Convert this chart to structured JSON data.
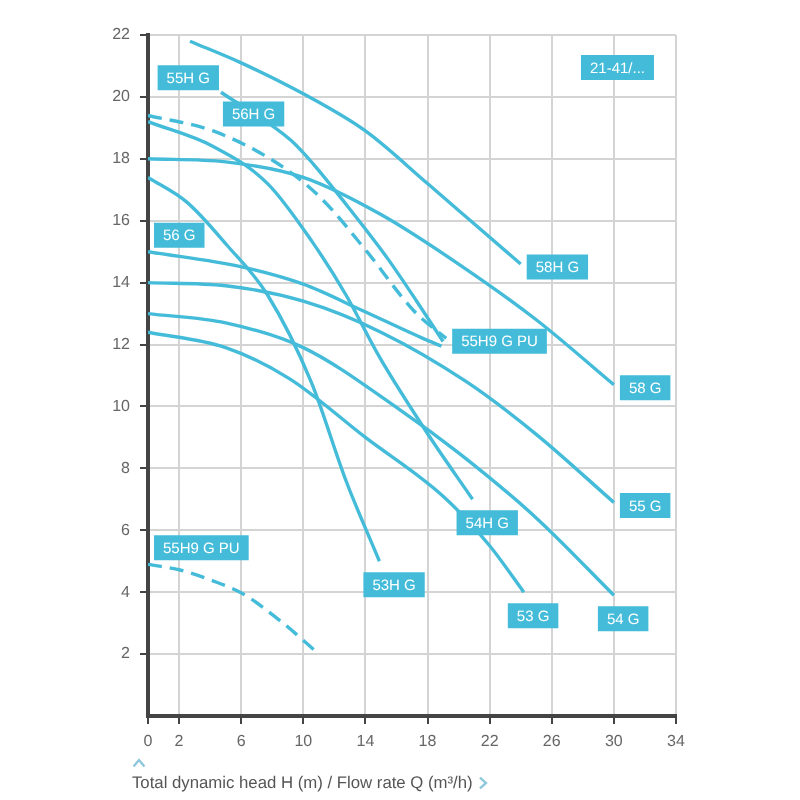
{
  "chart_data": {
    "type": "line",
    "title": "21-41/...",
    "xlabel": "Total dynamic head H (m) / Flow rate Q (m³/h)",
    "xlim": [
      0,
      34
    ],
    "xticks": [
      0,
      2,
      6,
      10,
      14,
      18,
      22,
      26,
      30,
      34
    ],
    "ylim": [
      0,
      22
    ],
    "yticks": [
      2,
      4,
      6,
      8,
      10,
      12,
      14,
      16,
      18,
      20,
      22
    ],
    "grid": true,
    "marker": "none",
    "series": [
      {
        "color": "#44bcd9",
        "x": [
          2.7,
          6,
          10,
          14,
          18,
          21,
          24
        ],
        "values": [
          21.8,
          21.1,
          20.1,
          18.9,
          17.2,
          15.9,
          14.6
        ]
      },
      {
        "color": "#44bcd9",
        "x": [
          0,
          5,
          10,
          15,
          20,
          25,
          30
        ],
        "values": [
          18,
          17.9,
          17.4,
          16.2,
          14.6,
          12.8,
          10.7
        ]
      },
      {
        "color": "#44bcd9",
        "x": [
          4.7,
          9.2,
          10.7,
          12.8,
          15.4,
          17.3,
          19
        ],
        "values": [
          20.15,
          18.6,
          17.8,
          16.5,
          14.8,
          13.4,
          12.1
        ]
      },
      {
        "color": "#44bcd9",
        "x": [
          0,
          4.2,
          7.7,
          10.6,
          12.75,
          14.9,
          17.9,
          20.9
        ],
        "values": [
          19.2,
          18.4,
          17.2,
          15.3,
          13.6,
          11.6,
          9.2,
          7
        ]
      },
      {
        "color": "#44bcd9",
        "x": [
          0,
          2.5,
          5.1,
          7.7,
          10.5,
          12.75,
          14.9
        ],
        "values": [
          17.4,
          16.6,
          15.2,
          13.6,
          10.8,
          7.6,
          5
        ]
      },
      {
        "color": "#44bcd9",
        "x": [
          0,
          6.1,
          10,
          13.8,
          17.7,
          18.9
        ],
        "values": [
          15,
          14.5,
          13.95,
          13.1,
          12.2,
          11.95
        ]
      },
      {
        "color": "#44bcd9",
        "x": [
          0,
          5,
          10,
          15,
          20.5,
          25,
          30
        ],
        "values": [
          14,
          13.9,
          13.4,
          12.4,
          10.8,
          9.1,
          6.9
        ]
      },
      {
        "color": "#44bcd9",
        "x": [
          0,
          5,
          10,
          16.2,
          20,
          25,
          30
        ],
        "values": [
          13,
          12.7,
          11.9,
          9.9,
          8.5,
          6.4,
          3.9
        ]
      },
      {
        "color": "#44bcd9",
        "x": [
          0,
          5,
          9.1,
          14,
          19,
          22,
          24.2
        ],
        "values": [
          12.4,
          11.9,
          10.9,
          9,
          7.1,
          5.5,
          4
        ]
      },
      {
        "color": "#44bcd9",
        "line_style": "dashed",
        "x": [
          0,
          4.2,
          8.5,
          11.1,
          14.1,
          17.1,
          19.2
        ],
        "values": [
          19.4,
          18.9,
          17.8,
          16.75,
          15,
          13.1,
          12.2
        ]
      },
      {
        "color": "#44bcd9",
        "line_style": "dashed",
        "x": [
          0,
          2.2,
          4,
          6.1,
          8.7,
          11
        ],
        "values": [
          4.9,
          4.7,
          4.4,
          3.95,
          3,
          2
        ]
      }
    ],
    "annotations": [
      {
        "text": "55H G",
        "x": 4.7,
        "y": 20.15
      },
      {
        "text": "56H G",
        "x": 6.8,
        "y": 19.45
      },
      {
        "text": "56 G",
        "x": 0,
        "y": 15
      },
      {
        "text": "58H G",
        "x": 24,
        "y": 14.6
      },
      {
        "text": "55H9 G PU",
        "x": 19.2,
        "y": 12.2
      },
      {
        "text": "58 G",
        "x": 30,
        "y": 10.7
      },
      {
        "text": "55 G",
        "x": 30,
        "y": 6.9
      },
      {
        "text": "54H G",
        "x": 20.9,
        "y": 7
      },
      {
        "text": "53 G",
        "x": 24.2,
        "y": 4
      },
      {
        "text": "54 G",
        "x": 30,
        "y": 3.9
      },
      {
        "text": "53H G",
        "x": 14.9,
        "y": 5
      },
      {
        "text": "55H9 G PU",
        "x": 0,
        "y": 4.9
      }
    ]
  }
}
